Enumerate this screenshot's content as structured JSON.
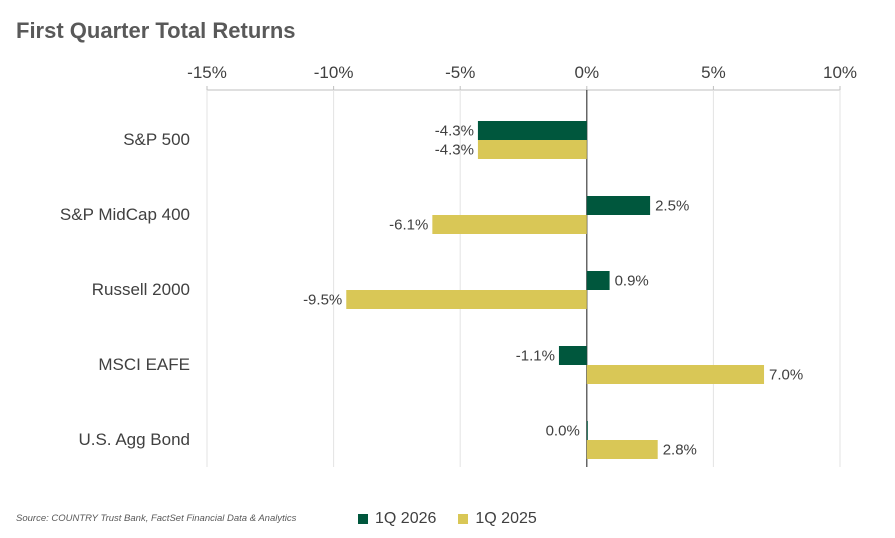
{
  "chart_data": {
    "type": "bar",
    "orientation": "horizontal",
    "title": "First Quarter Total Returns",
    "categories": [
      "S&P 500",
      "S&P MidCap 400",
      "Russell 2000",
      "MSCI EAFE",
      "U.S. Agg Bond"
    ],
    "series": [
      {
        "name": "1Q 2026",
        "color": "#00573d",
        "values": [
          -4.3,
          2.5,
          0.9,
          -1.1,
          0.0
        ],
        "data_labels": [
          "-4.3%",
          "2.5%",
          "0.9%",
          "-1.1%",
          "0.0%"
        ]
      },
      {
        "name": "1Q 2025",
        "color": "#d9c756",
        "values": [
          -4.3,
          -6.1,
          -9.5,
          7.0,
          2.8
        ],
        "data_labels": [
          "-4.3%",
          "-6.1%",
          "-9.5%",
          "7.0%",
          "2.8%"
        ]
      }
    ],
    "xlim": [
      -15,
      10
    ],
    "xticks": [
      -15,
      -10,
      -5,
      0,
      5,
      10
    ],
    "xtick_labels": [
      "-15%",
      "-10%",
      "-5%",
      "0%",
      "5%",
      "10%"
    ],
    "axis_position": "top",
    "grid": true,
    "legend_position": "bottom"
  },
  "footer": {
    "source": "Source: COUNTRY Trust Bank, FactSet Financial Data & Analytics"
  }
}
